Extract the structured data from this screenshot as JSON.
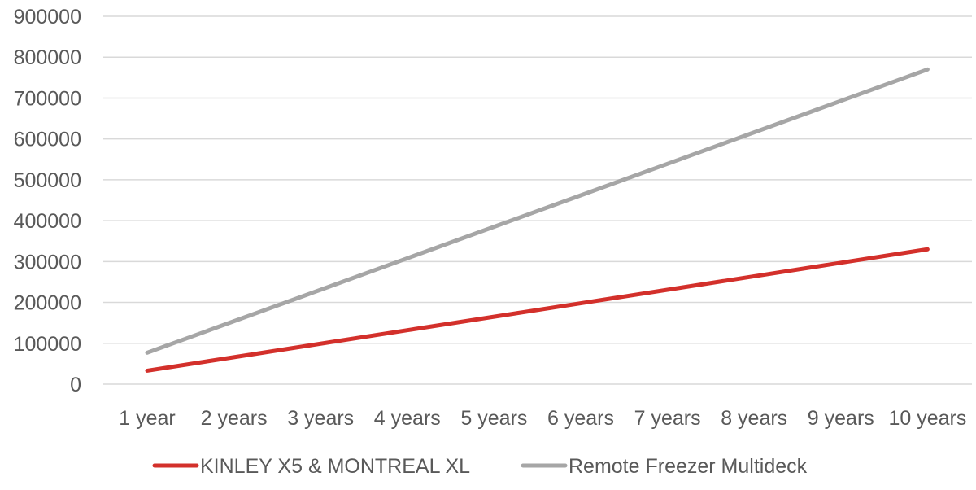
{
  "chart_data": {
    "type": "line",
    "title": "",
    "xlabel": "",
    "ylabel": "",
    "categories": [
      "1 year",
      "2 years",
      "3 years",
      "4 years",
      "5 years",
      "6 years",
      "7 years",
      "8 years",
      "9 years",
      "10 years"
    ],
    "series": [
      {
        "name": "KINLEY X5 & MONTREAL XL",
        "color": "#d3302b",
        "values": [
          33000,
          66000,
          99000,
          132000,
          165000,
          198000,
          231000,
          264000,
          297000,
          330000
        ]
      },
      {
        "name": "Remote Freezer Multideck",
        "color": "#a6a6a6",
        "values": [
          77000,
          154000,
          231000,
          308000,
          385000,
          462000,
          539000,
          616000,
          693000,
          770000
        ]
      }
    ],
    "ylim": [
      0,
      900000
    ],
    "yticks": [
      "0",
      "100000",
      "200000",
      "300000",
      "400000",
      "500000",
      "600000",
      "700000",
      "800000",
      "900000"
    ],
    "grid": true,
    "legend_position": "bottom"
  }
}
